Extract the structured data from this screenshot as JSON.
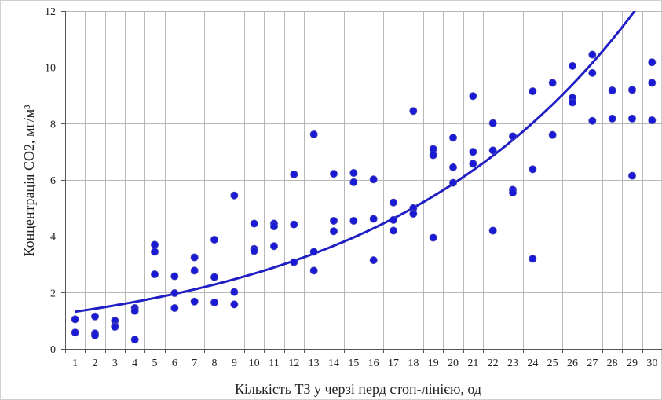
{
  "chart_data": {
    "type": "scatter",
    "title": "",
    "xlabel": "Кількість ТЗ у черзі перд стоп-лінією, од",
    "ylabel": "Концентрація СО2, мг/м³",
    "xlim": [
      0.5,
      30.5
    ],
    "ylim": [
      0,
      12
    ],
    "x_ticks": [
      1,
      2,
      3,
      4,
      5,
      6,
      7,
      8,
      9,
      10,
      11,
      12,
      13,
      14,
      15,
      16,
      17,
      18,
      19,
      20,
      21,
      22,
      23,
      24,
      25,
      26,
      27,
      28,
      29,
      30
    ],
    "y_ticks": [
      0,
      2,
      4,
      6,
      8,
      10,
      12
    ],
    "grid": true,
    "legend": "none",
    "colors": {
      "points": "#1a1ad6",
      "trendline": "#1f1fc4",
      "grid": "#b8b8b8"
    },
    "series": [
      {
        "type": "scatter",
        "points": [
          [
            1,
            1.05
          ],
          [
            1,
            0.58
          ],
          [
            2,
            1.15
          ],
          [
            2,
            0.55
          ],
          [
            2,
            0.48
          ],
          [
            3,
            1.0
          ],
          [
            3,
            0.82
          ],
          [
            3,
            0.78
          ],
          [
            4,
            1.45
          ],
          [
            4,
            1.35
          ],
          [
            4,
            0.33
          ],
          [
            5,
            3.7
          ],
          [
            5,
            3.45
          ],
          [
            5,
            2.65
          ],
          [
            6,
            2.58
          ],
          [
            6,
            1.98
          ],
          [
            6,
            1.45
          ],
          [
            7,
            3.25
          ],
          [
            7,
            2.78
          ],
          [
            7,
            1.68
          ],
          [
            8,
            3.88
          ],
          [
            8,
            2.55
          ],
          [
            8,
            1.65
          ],
          [
            9,
            5.45
          ],
          [
            9,
            2.02
          ],
          [
            9,
            1.58
          ],
          [
            10,
            4.45
          ],
          [
            10,
            3.55
          ],
          [
            10,
            3.48
          ],
          [
            11,
            4.45
          ],
          [
            11,
            4.35
          ],
          [
            11,
            3.65
          ],
          [
            12,
            6.2
          ],
          [
            12,
            4.42
          ],
          [
            12,
            3.08
          ],
          [
            13,
            7.62
          ],
          [
            13,
            3.45
          ],
          [
            13,
            2.78
          ],
          [
            14,
            6.22
          ],
          [
            14,
            4.55
          ],
          [
            14,
            4.18
          ],
          [
            15,
            6.25
          ],
          [
            15,
            5.92
          ],
          [
            15,
            4.55
          ],
          [
            16,
            6.02
          ],
          [
            16,
            4.62
          ],
          [
            16,
            3.15
          ],
          [
            17,
            5.2
          ],
          [
            17,
            4.58
          ],
          [
            17,
            4.2
          ],
          [
            18,
            8.45
          ],
          [
            18,
            5.0
          ],
          [
            18,
            4.8
          ],
          [
            19,
            7.1
          ],
          [
            19,
            6.88
          ],
          [
            19,
            3.95
          ],
          [
            20,
            7.5
          ],
          [
            20,
            6.45
          ],
          [
            20,
            5.9
          ],
          [
            21,
            8.98
          ],
          [
            21,
            7.0
          ],
          [
            21,
            6.58
          ],
          [
            22,
            8.02
          ],
          [
            22,
            7.05
          ],
          [
            22,
            4.2
          ],
          [
            23,
            7.55
          ],
          [
            23,
            5.65
          ],
          [
            23,
            5.55
          ],
          [
            24,
            9.15
          ],
          [
            24,
            6.38
          ],
          [
            24,
            3.2
          ],
          [
            25,
            9.45
          ],
          [
            25,
            7.6
          ],
          [
            26,
            10.05
          ],
          [
            26,
            8.92
          ],
          [
            26,
            8.75
          ],
          [
            27,
            10.45
          ],
          [
            27,
            9.8
          ],
          [
            27,
            8.1
          ],
          [
            28,
            9.18
          ],
          [
            28,
            8.18
          ],
          [
            29,
            9.2
          ],
          [
            29,
            8.18
          ],
          [
            29,
            6.15
          ],
          [
            30,
            10.18
          ],
          [
            30,
            9.45
          ],
          [
            30,
            8.12
          ]
        ]
      }
    ],
    "trendline": {
      "type": "exponential",
      "a": 1.22,
      "b": 0.0785,
      "x_range": [
        1,
        30
      ]
    }
  }
}
